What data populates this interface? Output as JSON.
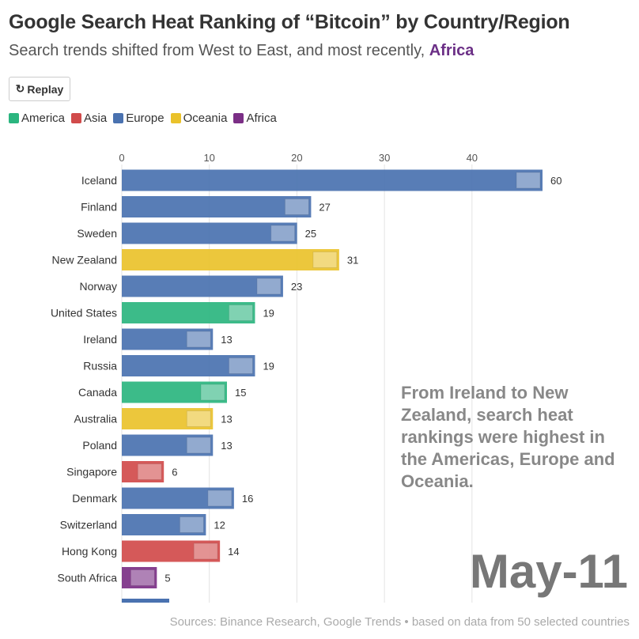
{
  "header": {
    "title": "Google Search Heat Ranking of “Bitcoin” by Country/Region",
    "subtitle_prefix": "Search trends shifted from West to East, and most recently, ",
    "subtitle_highlight": "Africa",
    "replay_label": "Replay",
    "replay_icon": "replay-icon"
  },
  "colors": {
    "America": "#2bb57f",
    "Asia": "#d14b4b",
    "Europe": "#4a72b0",
    "Oceania": "#eac22b",
    "Africa": "#7b2f86"
  },
  "chart_data": {
    "type": "bar",
    "title": "Google Search Heat Ranking of “Bitcoin” by Country/Region",
    "legend": [
      "America",
      "Asia",
      "Europe",
      "Oceania",
      "Africa"
    ],
    "legend_placement": "top-left",
    "x_ticks": [
      "0",
      "10",
      "20",
      "30",
      "40"
    ],
    "xlim": [
      0,
      48
    ],
    "bars": [
      {
        "name": "Iceland",
        "region": "Europe",
        "value": 60,
        "pos": 232
      },
      {
        "name": "Finland",
        "region": "Europe",
        "value": 27,
        "pos": 304
      },
      {
        "name": "Sweden",
        "region": "Europe",
        "value": 25,
        "pos": 308
      },
      {
        "name": "New Zealand",
        "region": "Oceania",
        "value": 31,
        "pos": 337
      },
      {
        "name": "Norway",
        "region": "Europe",
        "value": 23,
        "pos": 386
      },
      {
        "name": "United States",
        "region": "America",
        "value": 19,
        "pos": 462
      },
      {
        "name": "Ireland",
        "region": "Europe",
        "value": 13,
        "pos": 474
      },
      {
        "name": "Russia",
        "region": "Europe",
        "value": 19,
        "pos": 504
      },
      {
        "name": "Canada",
        "region": "America",
        "value": 15,
        "pos": 521
      },
      {
        "name": "Australia",
        "region": "Oceania",
        "value": 13,
        "pos": 539
      },
      {
        "name": "Poland",
        "region": "Europe",
        "value": 13,
        "pos": 617
      },
      {
        "name": "Singapore",
        "region": "Asia",
        "value": 6,
        "pos": 678
      },
      {
        "name": "Denmark",
        "region": "Europe",
        "value": 16,
        "pos": 683
      },
      {
        "name": "Switzerland",
        "region": "Europe",
        "value": 12,
        "pos": 688
      },
      {
        "name": "Hong Kong",
        "region": "Asia",
        "value": 14,
        "pos": 722
      },
      {
        "name": "South Africa",
        "region": "Africa",
        "value": 5,
        "pos": 722
      }
    ]
  },
  "annotation": "From Ireland to New Zealand, search heat rankings were highest in the Americas, Europe and Oceania.",
  "date": "May-11",
  "source": "Sources: Binance Research, Google Trends • based on data from 50 selected countries"
}
